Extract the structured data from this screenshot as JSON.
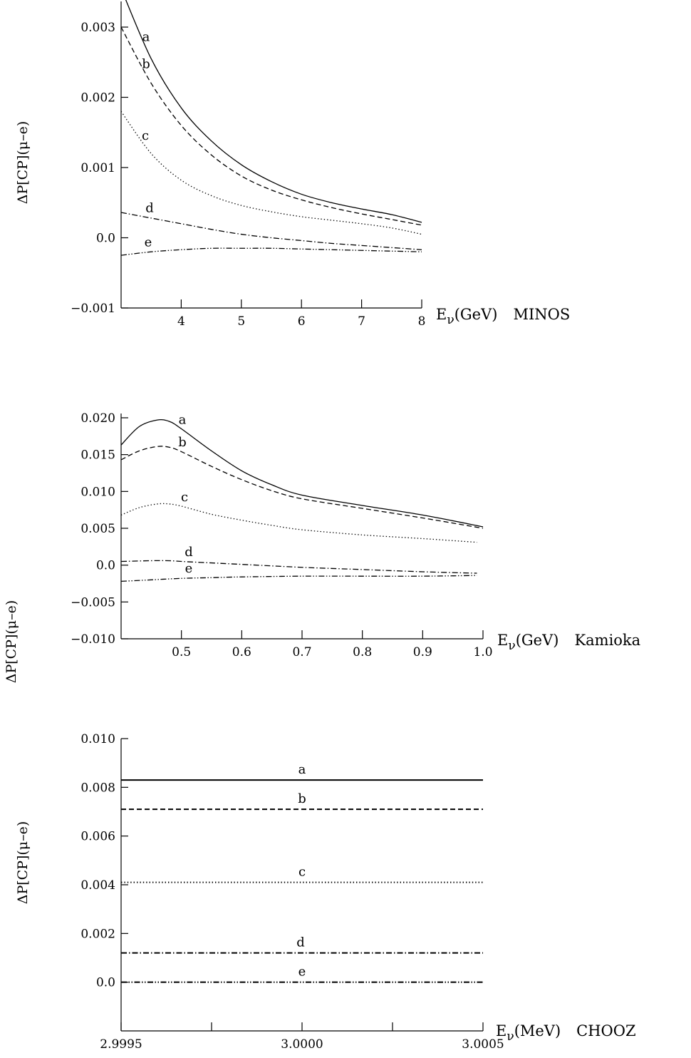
{
  "chart_data": [
    {
      "type": "line",
      "panel": "MINOS",
      "title": "",
      "xlabel": "E_ν(GeV)   MINOS",
      "xlabel_parts": {
        "base": "E",
        "sub": "ν",
        "unit": "(GeV)",
        "experiment": "MINOS"
      },
      "ylabel": "ΔP[CP](μ–e)",
      "xlim": [
        3.0,
        8.0
      ],
      "ylim": [
        -0.001,
        0.004
      ],
      "xticks": [
        "4",
        "5",
        "6",
        "7",
        "8"
      ],
      "yticks": [
        "0.003",
        "0.002",
        "0.001",
        "0.0",
        "−0.001"
      ],
      "ytick_values": [
        0.003,
        0.002,
        0.001,
        0.0,
        -0.001
      ],
      "xtick_values": [
        4,
        5,
        6,
        7,
        8
      ],
      "grid": false,
      "legend": "inline curve labels",
      "series": [
        {
          "name": "a",
          "style": "solid",
          "x": [
            3.0,
            3.5,
            4.0,
            4.5,
            5.0,
            5.5,
            6.0,
            6.5,
            7.0,
            7.5,
            8.0
          ],
          "y": [
            0.00355,
            0.00255,
            0.00185,
            0.00138,
            0.00104,
            0.0008,
            0.00062,
            0.0005,
            0.00041,
            0.00033,
            0.00022
          ]
        },
        {
          "name": "b",
          "style": "dashed",
          "x": [
            3.0,
            3.5,
            4.0,
            4.5,
            5.0,
            5.5,
            6.0,
            6.5,
            7.0,
            7.5,
            8.0
          ],
          "y": [
            0.003,
            0.0022,
            0.0016,
            0.00118,
            0.00088,
            0.00068,
            0.00054,
            0.00043,
            0.00034,
            0.00026,
            0.00018
          ]
        },
        {
          "name": "c",
          "style": "dotted",
          "x": [
            3.0,
            3.5,
            4.0,
            4.5,
            5.0,
            5.5,
            6.0,
            6.5,
            7.0,
            7.5,
            8.0
          ],
          "y": [
            0.0018,
            0.0012,
            0.00082,
            0.0006,
            0.00046,
            0.00037,
            0.0003,
            0.00025,
            0.0002,
            0.00014,
            5e-05
          ]
        },
        {
          "name": "d",
          "style": "dash-dot",
          "x": [
            3.0,
            3.5,
            4.0,
            4.5,
            5.0,
            5.5,
            6.0,
            6.5,
            7.0,
            7.5,
            8.0
          ],
          "y": [
            0.00036,
            0.00028,
            0.0002,
            0.00012,
            5e-05,
            0.0,
            -4e-05,
            -8e-05,
            -0.00011,
            -0.00014,
            -0.00017
          ]
        },
        {
          "name": "e",
          "style": "dash-dot-dot",
          "x": [
            3.0,
            3.5,
            4.0,
            4.5,
            5.0,
            5.5,
            6.0,
            6.5,
            7.0,
            7.5,
            8.0
          ],
          "y": [
            -0.00025,
            -0.0002,
            -0.00017,
            -0.00015,
            -0.00015,
            -0.00015,
            -0.00016,
            -0.00017,
            -0.00018,
            -0.00019,
            -0.0002
          ]
        }
      ]
    },
    {
      "type": "line",
      "panel": "Kamioka",
      "title": "",
      "xlabel": "E_ν(GeV)   Kamioka",
      "xlabel_parts": {
        "base": "E",
        "sub": "ν",
        "unit": "(GeV)",
        "experiment": "Kamioka"
      },
      "ylabel": "ΔP[CP](μ–e)",
      "xlim": [
        0.4,
        1.0
      ],
      "ylim": [
        -0.01,
        0.021
      ],
      "xticks": [
        "0.5",
        "0.6",
        "0.7",
        "0.8",
        "0.9",
        "1.0"
      ],
      "yticks": [
        "0.020",
        "0.015",
        "0.010",
        "0.005",
        "0.0",
        "−0.005",
        "−0.010"
      ],
      "ytick_values": [
        0.02,
        0.015,
        0.01,
        0.005,
        0.0,
        -0.005,
        -0.01
      ],
      "xtick_values": [
        0.5,
        0.6,
        0.7,
        0.8,
        0.9,
        1.0
      ],
      "grid": false,
      "legend": "inline curve labels",
      "series": [
        {
          "name": "a",
          "style": "solid",
          "x": [
            0.4,
            0.43,
            0.46,
            0.48,
            0.5,
            0.55,
            0.6,
            0.65,
            0.7,
            0.8,
            0.9,
            1.0
          ],
          "y": [
            0.0163,
            0.0188,
            0.0197,
            0.0195,
            0.0185,
            0.0155,
            0.0128,
            0.0109,
            0.0095,
            0.0081,
            0.0068,
            0.0052
          ]
        },
        {
          "name": "b",
          "style": "dashed",
          "x": [
            0.4,
            0.43,
            0.46,
            0.48,
            0.5,
            0.55,
            0.6,
            0.65,
            0.7,
            0.8,
            0.9,
            1.0
          ],
          "y": [
            0.0143,
            0.0155,
            0.0161,
            0.016,
            0.0154,
            0.0134,
            0.0116,
            0.0101,
            0.009,
            0.0077,
            0.0064,
            0.005
          ]
        },
        {
          "name": "c",
          "style": "dotted",
          "x": [
            0.4,
            0.43,
            0.46,
            0.48,
            0.5,
            0.55,
            0.6,
            0.65,
            0.7,
            0.8,
            0.9,
            0.99
          ],
          "y": [
            0.0068,
            0.0078,
            0.0083,
            0.0083,
            0.008,
            0.0069,
            0.0061,
            0.0054,
            0.0048,
            0.0041,
            0.0036,
            0.0031
          ]
        },
        {
          "name": "d",
          "style": "dash-dot",
          "x": [
            0.4,
            0.45,
            0.48,
            0.5,
            0.55,
            0.6,
            0.7,
            0.8,
            0.9,
            0.99
          ],
          "y": [
            0.0005,
            0.0006,
            0.0006,
            0.0005,
            0.0003,
            0.0001,
            -0.0003,
            -0.0006,
            -0.0009,
            -0.0011
          ]
        },
        {
          "name": "e",
          "style": "dash-dot-dot",
          "x": [
            0.4,
            0.45,
            0.5,
            0.55,
            0.6,
            0.7,
            0.8,
            0.9,
            0.99
          ],
          "y": [
            -0.0022,
            -0.002,
            -0.0018,
            -0.0017,
            -0.0016,
            -0.0015,
            -0.0015,
            -0.0015,
            -0.0014
          ]
        }
      ]
    },
    {
      "type": "line",
      "panel": "CHOOZ",
      "title": "",
      "xlabel": "E_ν(MeV)   CHOOZ",
      "xlabel_parts": {
        "base": "E",
        "sub": "ν",
        "unit": "(MeV)",
        "experiment": "CHOOZ"
      },
      "ylabel": "ΔP[CP](μ–e)",
      "xlim": [
        2.9995,
        3.0005
      ],
      "ylim": [
        -0.002,
        0.01
      ],
      "xticks": [
        "2.9995",
        "3.0000",
        "3.0005"
      ],
      "xtick_values": [
        2.9995,
        3.0,
        3.0005
      ],
      "xtick_minor_values": [
        2.99975,
        3.00025
      ],
      "yticks": [
        "0.010",
        "0.008",
        "0.006",
        "0.004",
        "0.002",
        "0.0"
      ],
      "ytick_values": [
        0.01,
        0.008,
        0.006,
        0.004,
        0.002,
        0.0
      ],
      "grid": false,
      "legend": "inline curve labels",
      "series": [
        {
          "name": "a",
          "style": "solid",
          "x": [
            2.9995,
            3.0005
          ],
          "y": [
            0.0083,
            0.0083
          ]
        },
        {
          "name": "b",
          "style": "dashed",
          "x": [
            2.9995,
            3.0005
          ],
          "y": [
            0.0071,
            0.0071
          ]
        },
        {
          "name": "c",
          "style": "dotted",
          "x": [
            2.9995,
            3.0005
          ],
          "y": [
            0.0041,
            0.0041
          ]
        },
        {
          "name": "d",
          "style": "dash-dot",
          "x": [
            2.9995,
            3.0005
          ],
          "y": [
            0.0012,
            0.0012
          ]
        },
        {
          "name": "e",
          "style": "dash-dot-dot",
          "x": [
            2.9995,
            3.0005
          ],
          "y": [
            0.0,
            0.0
          ]
        }
      ]
    }
  ]
}
